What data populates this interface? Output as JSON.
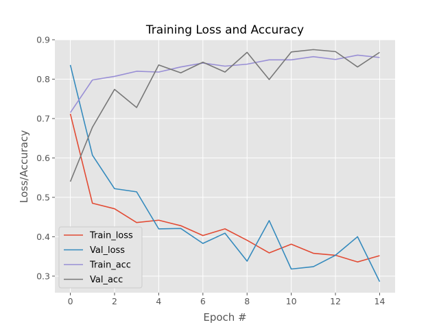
{
  "chart_data": {
    "type": "line",
    "title": "Training Loss and Accuracy",
    "xlabel": "Epoch #",
    "ylabel": "Loss/Accuracy",
    "xlim": [
      -0.7,
      14.7
    ],
    "ylim": [
      0.258,
      0.9
    ],
    "xticks": [
      0,
      2,
      4,
      6,
      8,
      10,
      12,
      14
    ],
    "yticks": [
      0.3,
      0.4,
      0.5,
      0.6,
      0.7,
      0.8,
      0.9
    ],
    "grid": true,
    "legend_position": "lower-left",
    "x": [
      0,
      1,
      2,
      3,
      4,
      5,
      6,
      7,
      8,
      9,
      10,
      11,
      12,
      13,
      14
    ],
    "series": [
      {
        "name": "Train_loss",
        "color": "#e24a33",
        "values": [
          0.712,
          0.485,
          0.471,
          0.436,
          0.442,
          0.428,
          0.403,
          0.42,
          0.391,
          0.359,
          0.381,
          0.358,
          0.353,
          0.336,
          0.352
        ]
      },
      {
        "name": "Val_loss",
        "color": "#348abd",
        "values": [
          0.836,
          0.607,
          0.522,
          0.514,
          0.42,
          0.421,
          0.383,
          0.409,
          0.338,
          0.441,
          0.318,
          0.324,
          0.353,
          0.4,
          0.286
        ]
      },
      {
        "name": "Train_acc",
        "color": "#988ed5",
        "values": [
          0.715,
          0.798,
          0.807,
          0.82,
          0.818,
          0.831,
          0.841,
          0.833,
          0.838,
          0.849,
          0.849,
          0.857,
          0.85,
          0.861,
          0.855
        ]
      },
      {
        "name": "Val_acc",
        "color": "#777777",
        "values": [
          0.54,
          0.678,
          0.774,
          0.728,
          0.836,
          0.816,
          0.843,
          0.818,
          0.868,
          0.799,
          0.869,
          0.875,
          0.87,
          0.831,
          0.868
        ]
      }
    ]
  }
}
